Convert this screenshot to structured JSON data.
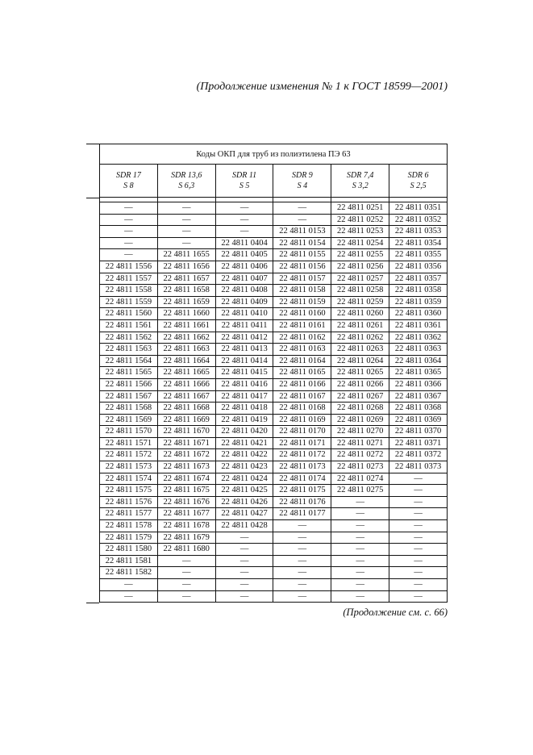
{
  "running_head": "(Продолжение изменения № 1 к ГОСТ 18599—2001)",
  "table": {
    "caption": "Коды ОКП для труб из полиэтилена ПЭ 63",
    "columns": [
      {
        "sdr": "SDR 17",
        "s": "S 8"
      },
      {
        "sdr": "SDR 13,6",
        "s": "S 6,3"
      },
      {
        "sdr": "SDR 11",
        "s": "S 5"
      },
      {
        "sdr": "SDR 9",
        "s": "S 4"
      },
      {
        "sdr": "SDR 7,4",
        "s": "S 3,2"
      },
      {
        "sdr": "SDR 6",
        "s": "S 2,5"
      }
    ],
    "rows": [
      [
        "—",
        "—",
        "—",
        "—",
        "22 4811 0251",
        "22 4811 0351"
      ],
      [
        "—",
        "—",
        "—",
        "—",
        "22 4811 0252",
        "22 4811 0352"
      ],
      [
        "—",
        "—",
        "—",
        "22 4811 0153",
        "22 4811 0253",
        "22 4811 0353"
      ],
      [
        "—",
        "—",
        "22 4811 0404",
        "22 4811 0154",
        "22 4811 0254",
        "22 4811 0354"
      ],
      [
        "—",
        "22 4811 1655",
        "22 4811 0405",
        "22 4811 0155",
        "22 4811 0255",
        "22 4811 0355"
      ],
      [
        "22 4811 1556",
        "22 4811 1656",
        "22 4811 0406",
        "22 4811 0156",
        "22 4811 0256",
        "22 4811 0356"
      ],
      [
        "22 4811 1557",
        "22 4811 1657",
        "22 4811 0407",
        "22 4811 0157",
        "22 4811 0257",
        "22 4811 0357"
      ],
      [
        "22 4811 1558",
        "22 4811 1658",
        "22 4811 0408",
        "22 4811 0158",
        "22 4811 0258",
        "22 4811 0358"
      ],
      [
        "22 4811 1559",
        "22 4811 1659",
        "22 4811 0409",
        "22 4811 0159",
        "22 4811 0259",
        "22 4811 0359"
      ],
      [
        "22 4811 1560",
        "22 4811 1660",
        "22 4811 0410",
        "22 4811 0160",
        "22 4811 0260",
        "22 4811 0360"
      ],
      [
        "22 4811 1561",
        "22 4811 1661",
        "22 4811 0411",
        "22 4811 0161",
        "22 4811 0261",
        "22 4811 0361"
      ],
      [
        "22 4811 1562",
        "22 4811 1662",
        "22 4811 0412",
        "22 4811 0162",
        "22 4811 0262",
        "22 4811 0362"
      ],
      [
        "22 4811 1563",
        "22 4811 1663",
        "22 4811 0413",
        "22 4811 0163",
        "22 4811 0263",
        "22 4811 0363"
      ],
      [
        "22 4811 1564",
        "22 4811 1664",
        "22 4811 0414",
        "22 4811 0164",
        "22 4811 0264",
        "22 4811 0364"
      ],
      [
        "22 4811 1565",
        "22 4811 1665",
        "22 4811 0415",
        "22 4811 0165",
        "22 4811 0265",
        "22 4811 0365"
      ],
      [
        "22 4811 1566",
        "22 4811 1666",
        "22 4811 0416",
        "22 4811 0166",
        "22 4811 0266",
        "22 4811 0366"
      ],
      [
        "22 4811 1567",
        "22 4811 1667",
        "22 4811 0417",
        "22 4811 0167",
        "22 4811 0267",
        "22 4811 0367"
      ],
      [
        "22 4811 1568",
        "22 4811 1668",
        "22 4811 0418",
        "22 4811 0168",
        "22 4811 0268",
        "22 4811 0368"
      ],
      [
        "22 4811 1569",
        "22 4811 1669",
        "22 4811 0419",
        "22 4811 0169",
        "22 4811 0269",
        "22 4811 0369"
      ],
      [
        "22 4811 1570",
        "22 4811 1670",
        "22 4811 0420",
        "22 4811 0170",
        "22 4811 0270",
        "22 4811 0370"
      ],
      [
        "22 4811 1571",
        "22 4811 1671",
        "22 4811 0421",
        "22 4811 0171",
        "22 4811 0271",
        "22 4811 0371"
      ],
      [
        "22 4811 1572",
        "22 4811 1672",
        "22 4811 0422",
        "22 4811 0172",
        "22 4811 0272",
        "22 4811 0372"
      ],
      [
        "22 4811 1573",
        "22 4811 1673",
        "22 4811 0423",
        "22 4811 0173",
        "22 4811 0273",
        "22 4811 0373"
      ],
      [
        "22 4811 1574",
        "22 4811 1674",
        "22 4811 0424",
        "22 4811 0174",
        "22 4811 0274",
        "—"
      ],
      [
        "22 4811 1575",
        "22 4811 1675",
        "22 4811 0425",
        "22 4811 0175",
        "22 4811 0275",
        "—"
      ],
      [
        "22 4811 1576",
        "22 4811 1676",
        "22 4811 0426",
        "22 4811 0176",
        "—",
        "—"
      ],
      [
        "22 4811 1577",
        "22 4811 1677",
        "22 4811 0427",
        "22 4811 0177",
        "—",
        "—"
      ],
      [
        "22 4811 1578",
        "22 4811 1678",
        "22 4811 0428",
        "—",
        "—",
        "—"
      ],
      [
        "22 4811 1579",
        "22 4811 1679",
        "—",
        "—",
        "—",
        "—"
      ],
      [
        "22 4811 1580",
        "22 4811 1680",
        "—",
        "—",
        "—",
        "—"
      ],
      [
        "22 4811 1581",
        "—",
        "—",
        "—",
        "—",
        "—"
      ],
      [
        "22 4811 1582",
        "—",
        "—",
        "—",
        "—",
        "—"
      ],
      [
        "—",
        "—",
        "—",
        "—",
        "—",
        "—"
      ],
      [
        "—",
        "—",
        "—",
        "—",
        "—",
        "—"
      ]
    ]
  },
  "continuation": "(Продолжение см. с. 66)"
}
